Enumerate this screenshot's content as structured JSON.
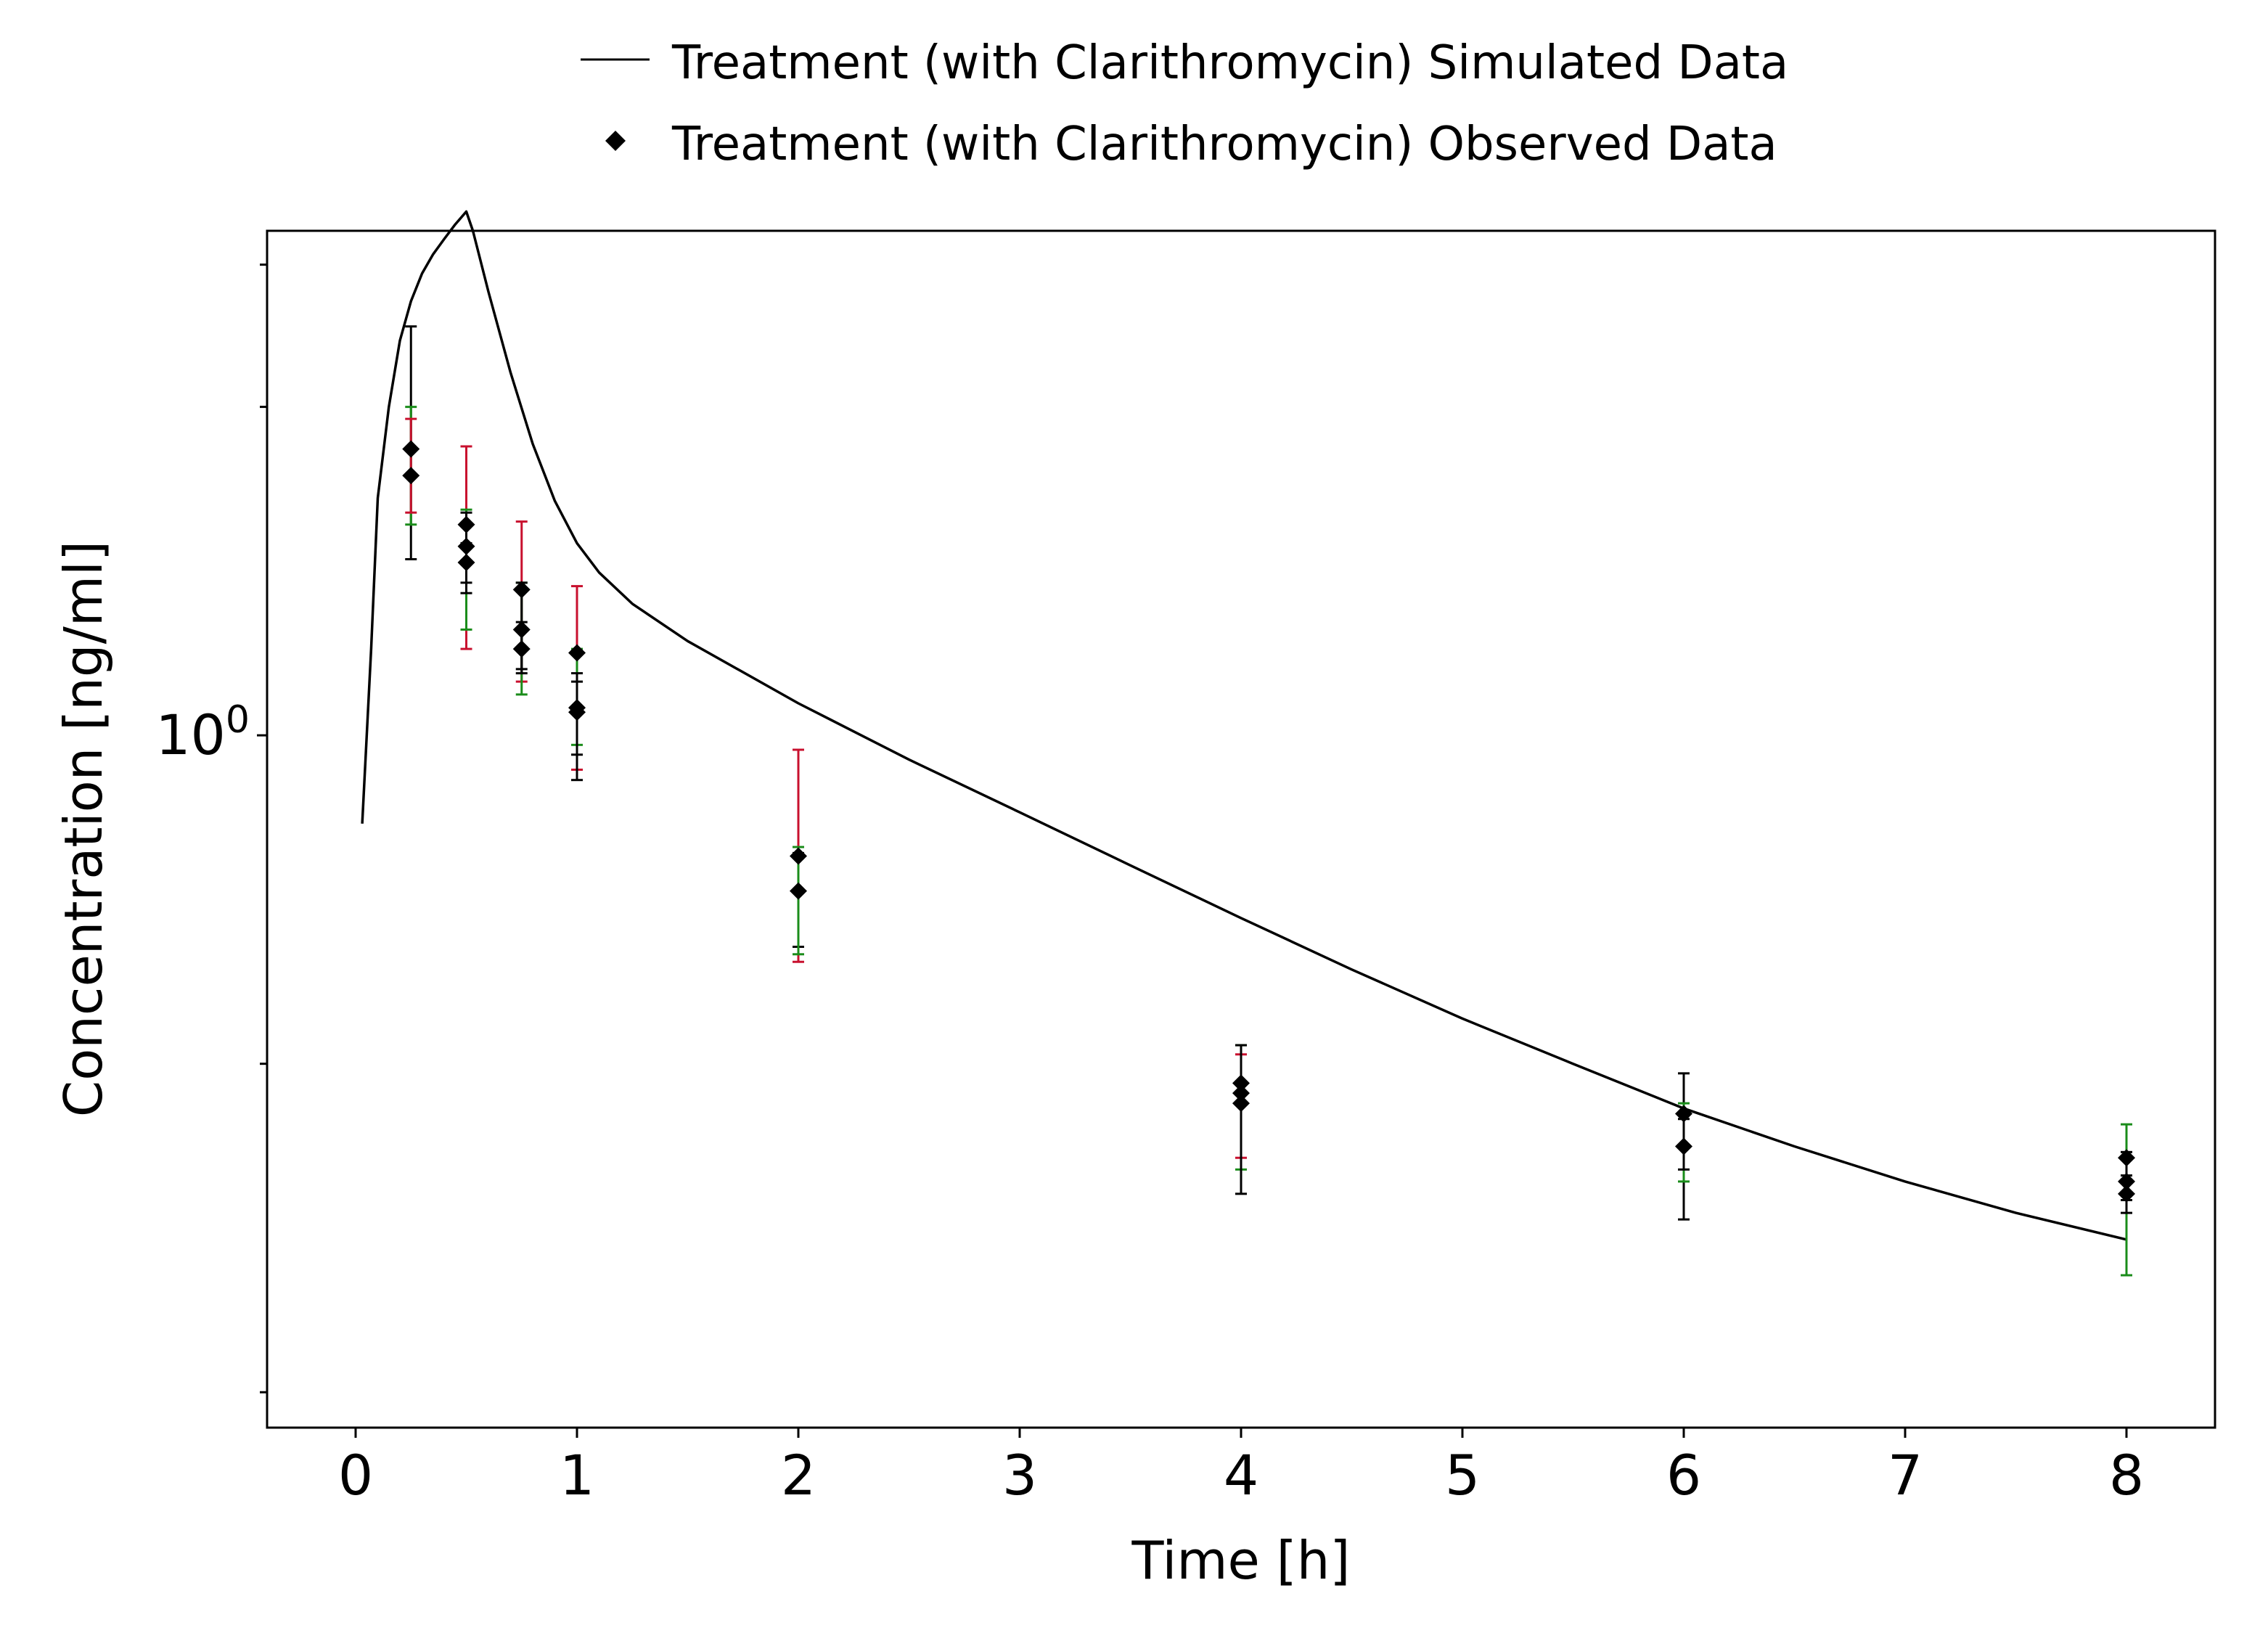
{
  "chart_data": {
    "type": "line",
    "xlabel": "Time [h]",
    "ylabel": "Concentration [ng/ml]",
    "x_scale": "linear",
    "y_scale": "log",
    "xlim": [
      -0.4,
      8.4
    ],
    "ylim": [
      0.232,
      2.9
    ],
    "x_ticks": [
      0,
      1,
      2,
      3,
      4,
      5,
      6,
      7,
      8
    ],
    "x_tick_labels": [
      "0",
      "1",
      "2",
      "3",
      "4",
      "5",
      "6",
      "7",
      "8"
    ],
    "y_major_ticks": [
      1
    ],
    "y_tick_labels": [
      {
        "base": "10",
        "exp": "0"
      }
    ],
    "y_minor_ticks": [
      0.25,
      0.5,
      2,
      2.7
    ],
    "grid": false,
    "legend_position": "top-center",
    "legend": [
      {
        "name": "Treatment (with Clarithromycin) Simulated Data",
        "marker": "line"
      },
      {
        "name": "Treatment (with Clarithromycin) Observed Data",
        "marker": "diamond"
      }
    ],
    "series": [
      {
        "name": "Treatment (with Clarithromycin) Simulated Data",
        "kind": "line",
        "color": "#000000",
        "x": [
          0.03,
          0.07,
          0.1,
          0.15,
          0.2,
          0.25,
          0.3,
          0.35,
          0.4,
          0.45,
          0.5,
          0.53,
          0.6,
          0.7,
          0.8,
          0.9,
          1.0,
          1.1,
          1.25,
          1.5,
          2.0,
          2.5,
          3.0,
          3.5,
          4.0,
          4.5,
          5.0,
          5.5,
          6.0,
          6.5,
          7.0,
          7.5,
          8.0
        ],
        "y": [
          0.83,
          1.2,
          1.65,
          2.0,
          2.3,
          2.5,
          2.65,
          2.76,
          2.85,
          2.94,
          3.02,
          2.9,
          2.55,
          2.15,
          1.85,
          1.64,
          1.5,
          1.41,
          1.32,
          1.22,
          1.07,
          0.95,
          0.85,
          0.76,
          0.68,
          0.61,
          0.55,
          0.5,
          0.455,
          0.42,
          0.39,
          0.365,
          0.345
        ]
      },
      {
        "name": "Treatment (with Clarithromycin) Observed Data",
        "kind": "scatter",
        "marker": "diamond",
        "color": "#000000",
        "points": [
          {
            "x": 0.25,
            "y": 1.83,
            "err": [
              {
                "lo": 1.45,
                "hi": 2.37,
                "color": "#000000"
              },
              {
                "lo": 1.56,
                "hi": 2.0,
                "color": "#1a8c1a"
              }
            ]
          },
          {
            "x": 0.25,
            "y": 1.73,
            "err": [
              {
                "lo": 1.6,
                "hi": 1.95,
                "color": "#c8102e"
              }
            ]
          },
          {
            "x": 0.5,
            "y": 1.56,
            "err": [
              {
                "lo": 1.2,
                "hi": 1.84,
                "color": "#c8102e"
              },
              {
                "lo": 1.25,
                "hi": 1.61,
                "color": "#1a8c1a"
              }
            ]
          },
          {
            "x": 0.5,
            "y": 1.49,
            "err": [
              {
                "lo": 1.35,
                "hi": 1.6,
                "color": "#000000"
              }
            ]
          },
          {
            "x": 0.5,
            "y": 1.44,
            "err": [
              {
                "lo": 1.38,
                "hi": 1.5,
                "color": "#000000"
              }
            ]
          },
          {
            "x": 0.75,
            "y": 1.36,
            "err": [
              {
                "lo": 1.12,
                "hi": 1.57,
                "color": "#c8102e"
              },
              {
                "lo": 1.09,
                "hi": 1.38,
                "color": "#1a8c1a"
              }
            ]
          },
          {
            "x": 0.75,
            "y": 1.25,
            "err": [
              {
                "lo": 1.15,
                "hi": 1.38,
                "color": "#000000"
              }
            ]
          },
          {
            "x": 0.75,
            "y": 1.2,
            "err": [
              {
                "lo": 1.14,
                "hi": 1.27,
                "color": "#000000"
              }
            ]
          },
          {
            "x": 1.0,
            "y": 1.19,
            "err": [
              {
                "lo": 0.93,
                "hi": 1.37,
                "color": "#c8102e"
              },
              {
                "lo": 0.98,
                "hi": 1.2,
                "color": "#1a8c1a"
              }
            ]
          },
          {
            "x": 1.0,
            "y": 1.06,
            "err": [
              {
                "lo": 0.91,
                "hi": 1.14,
                "color": "#000000"
              }
            ]
          },
          {
            "x": 1.0,
            "y": 1.05,
            "err": [
              {
                "lo": 0.96,
                "hi": 1.12,
                "color": "#000000"
              }
            ]
          },
          {
            "x": 2.0,
            "y": 0.775,
            "err": [
              {
                "lo": 0.62,
                "hi": 0.97,
                "color": "#c8102e"
              }
            ]
          },
          {
            "x": 2.0,
            "y": 0.72,
            "err": [
              {
                "lo": 0.64,
                "hi": 0.78,
                "color": "#000000"
              },
              {
                "lo": 0.63,
                "hi": 0.79,
                "color": "#1a8c1a"
              }
            ]
          },
          {
            "x": 4.0,
            "y": 0.48,
            "err": [
              {
                "lo": 0.4,
                "hi": 0.52,
                "color": "#1a8c1a"
              }
            ]
          },
          {
            "x": 4.0,
            "y": 0.47,
            "err": [
              {
                "lo": 0.41,
                "hi": 0.51,
                "color": "#c8102e"
              }
            ]
          },
          {
            "x": 4.0,
            "y": 0.46,
            "err": [
              {
                "lo": 0.38,
                "hi": 0.52,
                "color": "#000000"
              }
            ]
          },
          {
            "x": 6.0,
            "y": 0.45,
            "err": [
              {
                "lo": 0.36,
                "hi": 0.49,
                "color": "#000000"
              },
              {
                "lo": 0.39,
                "hi": 0.46,
                "color": "#1a8c1a"
              }
            ]
          },
          {
            "x": 6.0,
            "y": 0.42,
            "err": [
              {
                "lo": 0.4,
                "hi": 0.445,
                "color": "#000000"
              }
            ]
          },
          {
            "x": 8.0,
            "y": 0.41,
            "err": [
              {
                "lo": 0.32,
                "hi": 0.44,
                "color": "#1a8c1a"
              }
            ]
          },
          {
            "x": 8.0,
            "y": 0.39,
            "err": [
              {
                "lo": 0.375,
                "hi": 0.415,
                "color": "#000000"
              }
            ]
          },
          {
            "x": 8.0,
            "y": 0.38,
            "err": [
              {
                "lo": 0.365,
                "hi": 0.395,
                "color": "#000000"
              }
            ]
          }
        ]
      }
    ]
  }
}
